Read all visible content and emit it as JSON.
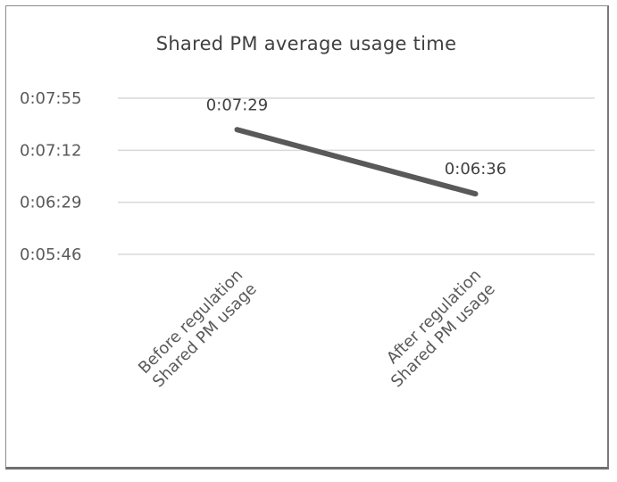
{
  "chart_data": {
    "type": "line",
    "title": "Shared PM average usage time",
    "categories": [
      [
        "Before regulation",
        "Shared PM usage"
      ],
      [
        "After regulation",
        "Shared PM usage"
      ]
    ],
    "series": [
      {
        "values": [
          "0:07:29",
          "0:06:36"
        ],
        "values_seconds": [
          449,
          396
        ],
        "color": "#595959"
      }
    ],
    "yticks": [
      "0:05:46",
      "0:06:29",
      "0:07:12",
      "0:07:55"
    ],
    "ylim": [
      "0:05:46",
      "0:07:55"
    ],
    "grid": true,
    "legend": "none",
    "data_labels": true
  }
}
